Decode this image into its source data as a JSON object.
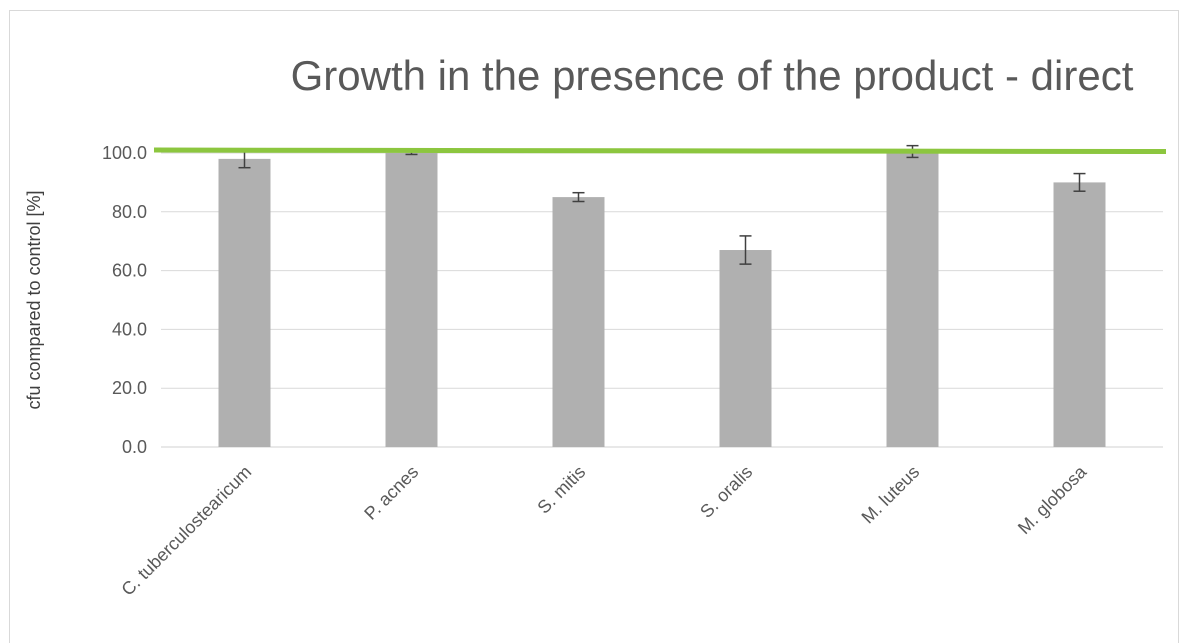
{
  "chart_data": {
    "type": "bar",
    "title": "Growth in the presence of the product - direct",
    "xlabel": "",
    "ylabel": "cfu compared to control [%]",
    "categories": [
      "C. tuberculostearicum",
      "P. acnes",
      "S. mitis",
      "S. oralis",
      "M. luteus",
      "M. globosa"
    ],
    "series": [
      {
        "values": [
          98.0,
          100.0,
          85.0,
          67.0,
          100.5,
          90.0
        ],
        "error": [
          3.0,
          0.5,
          1.5,
          4.8,
          2.0,
          3.0
        ],
        "color": "#b0b0b0"
      }
    ],
    "ylim": [
      0,
      100
    ],
    "yticks": [
      0,
      20,
      40,
      60,
      80,
      100
    ],
    "ytick_labels": [
      "0.0",
      "20.0",
      "40.0",
      "60.0",
      "80.0",
      "100.0"
    ],
    "reference_line": {
      "value": 101,
      "color": "#8cc63f"
    },
    "grid": true,
    "legend": "none"
  }
}
